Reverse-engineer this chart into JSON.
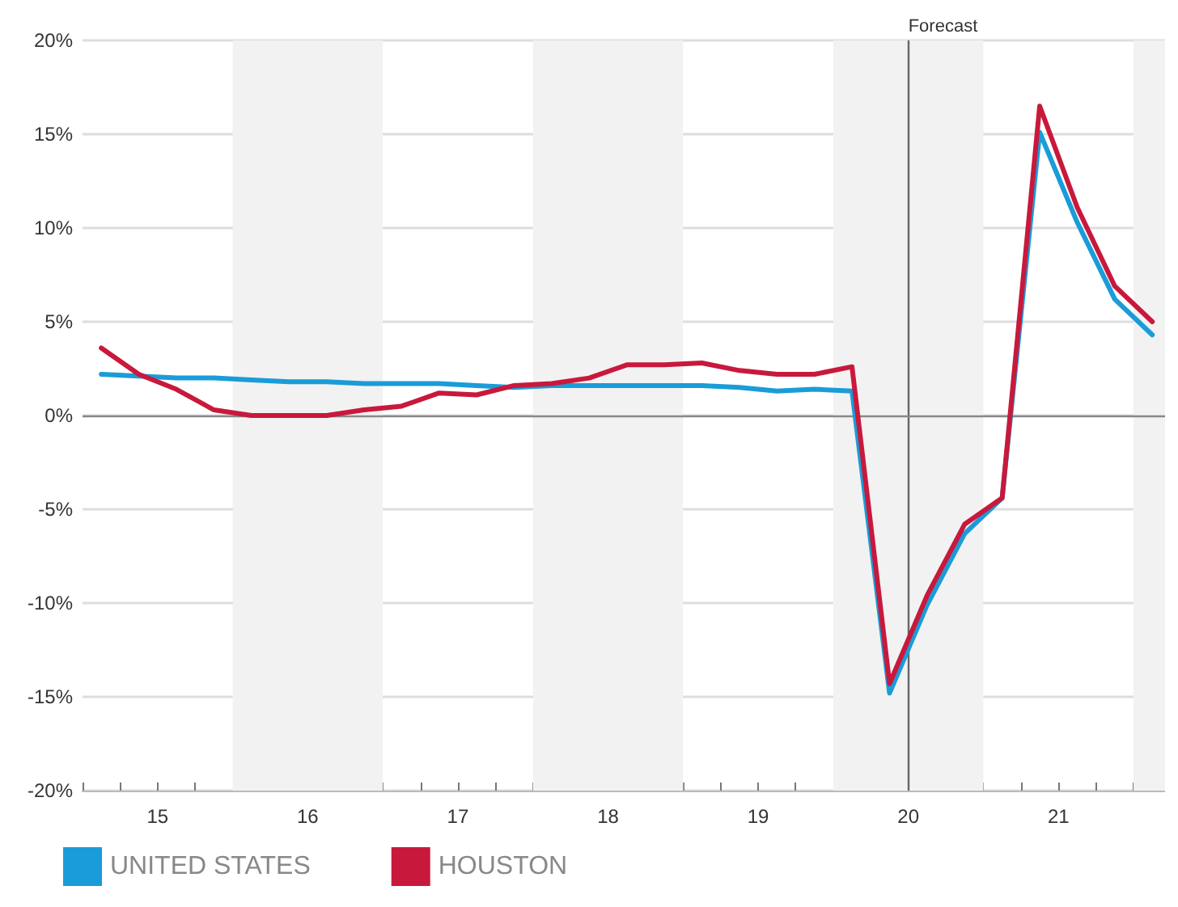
{
  "chart_data": {
    "type": "line",
    "x": [
      14.625,
      14.875,
      15.125,
      15.375,
      15.625,
      15.875,
      16.125,
      16.375,
      16.625,
      16.875,
      17.125,
      17.375,
      17.625,
      17.875,
      18.125,
      18.375,
      18.625,
      18.875,
      19.125,
      19.375,
      19.625,
      19.875,
      20.125,
      20.375,
      20.625,
      20.875,
      21.125,
      21.375,
      21.625
    ],
    "series": [
      {
        "name": "UNITED STATES",
        "color": "#1a9cd8",
        "values": [
          2.2,
          2.1,
          2.0,
          2.0,
          1.9,
          1.8,
          1.8,
          1.7,
          1.7,
          1.7,
          1.6,
          1.5,
          1.6,
          1.6,
          1.6,
          1.6,
          1.6,
          1.5,
          1.3,
          1.4,
          1.3,
          -14.8,
          -10.1,
          -6.3,
          -4.4,
          15.1,
          10.3,
          6.2,
          4.3
        ]
      },
      {
        "name": "HOUSTON",
        "color": "#c8193c",
        "values": [
          3.6,
          2.2,
          1.4,
          0.3,
          0.0,
          0.0,
          0.0,
          0.3,
          0.5,
          1.2,
          1.1,
          1.6,
          1.7,
          2.0,
          2.7,
          2.7,
          2.8,
          2.4,
          2.2,
          2.2,
          2.6,
          -14.3,
          -9.6,
          -5.8,
          -4.4,
          16.5,
          11.1,
          6.9,
          5.0
        ]
      }
    ],
    "xlim": [
      14.5,
      21.71
    ],
    "xticks": [
      {
        "value": 14.5,
        "label": null
      },
      {
        "value": 14.75,
        "label": null
      },
      15,
      {
        "value": 15.25,
        "label": null
      },
      {
        "value": 15.5,
        "label": null
      },
      {
        "value": 15.75,
        "label": null
      },
      16,
      {
        "value": 16.25,
        "label": null
      },
      {
        "value": 16.5,
        "label": null
      },
      {
        "value": 16.75,
        "label": null
      },
      17,
      {
        "value": 17.25,
        "label": null
      },
      {
        "value": 17.5,
        "label": null
      },
      {
        "value": 17.75,
        "label": null
      },
      18,
      {
        "value": 18.25,
        "label": null
      },
      {
        "value": 18.5,
        "label": null
      },
      {
        "value": 18.75,
        "label": null
      },
      19,
      {
        "value": 19.25,
        "label": null
      },
      {
        "value": 19.5,
        "label": null
      },
      {
        "value": 19.75,
        "label": null
      },
      20,
      {
        "value": 20.25,
        "label": null
      },
      {
        "value": 20.5,
        "label": null
      },
      {
        "value": 20.75,
        "label": null
      },
      21,
      {
        "value": 21.25,
        "label": null
      },
      {
        "value": 21.5,
        "label": null
      }
    ],
    "ylim": [
      -20,
      20
    ],
    "yticks": [
      {
        "value": -20,
        "label": "-20%"
      },
      {
        "value": -15,
        "label": "-15%"
      },
      {
        "value": -10,
        "label": "-10%"
      },
      {
        "value": -5,
        "label": "-5%"
      },
      {
        "value": 0,
        "label": "0%"
      },
      {
        "value": 5,
        "label": "5%"
      },
      {
        "value": 10,
        "label": "10%"
      },
      {
        "value": 15,
        "label": "15%"
      },
      {
        "value": 20,
        "label": "20%"
      }
    ],
    "bands": [
      {
        "axis": "x",
        "from": 15.5,
        "to": 16.5,
        "color": "#f2f2f2"
      },
      {
        "axis": "x",
        "from": 17.5,
        "to": 18.5,
        "color": "#f2f2f2"
      },
      {
        "axis": "x",
        "from": 19.5,
        "to": 20.5,
        "color": "#f2f2f2"
      },
      {
        "axis": "x",
        "from": 21.5,
        "to": 21.71,
        "color": "#f2f2f2"
      }
    ],
    "ref_lines": [
      {
        "axis": "x",
        "value": 20,
        "label": "Forecast",
        "color": "#666666"
      },
      {
        "axis": "y",
        "value": 0,
        "color": "#888888"
      }
    ],
    "grid": "y",
    "legend": "bottom left",
    "marker": "none",
    "line_style": "solid"
  }
}
